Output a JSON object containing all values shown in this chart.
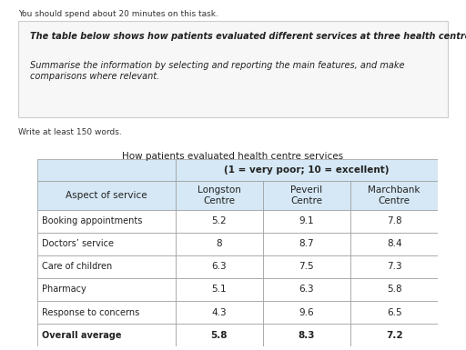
{
  "page_note": "You should spend about 20 minutes on this task.",
  "box_text_line1": "The table below shows how patients evaluated different services at three health centres.",
  "box_text_line2": "Summarise the information by selecting and reporting the main features, and make\ncomparisons where relevant.",
  "write_note": "Write at least 150 words.",
  "table_title": "How patients evaluated health centre services",
  "header_row1": "(1 = very poor; 10 = excellent)",
  "col0_header": "Aspect of service",
  "col_headers": [
    "Longston\nCentre",
    "Peveril\nCentre",
    "Marchbank\nCentre"
  ],
  "row_labels": [
    "Booking appointments",
    "Doctors’ service",
    "Care of children",
    "Pharmacy",
    "Response to concerns",
    "Overall average"
  ],
  "row_bold": [
    false,
    false,
    false,
    false,
    false,
    true
  ],
  "data": [
    [
      "5.2",
      "9.1",
      "7.8"
    ],
    [
      "8",
      "8.7",
      "8.4"
    ],
    [
      "6.3",
      "7.5",
      "7.3"
    ],
    [
      "5.1",
      "6.3",
      "5.8"
    ],
    [
      "4.3",
      "9.6",
      "6.5"
    ],
    [
      "5.8",
      "8.3",
      "7.2"
    ]
  ],
  "header_bg": "#d6e8f5",
  "border_color": "#999999",
  "box_bg": "#f7f7f7",
  "box_border": "#cccccc"
}
